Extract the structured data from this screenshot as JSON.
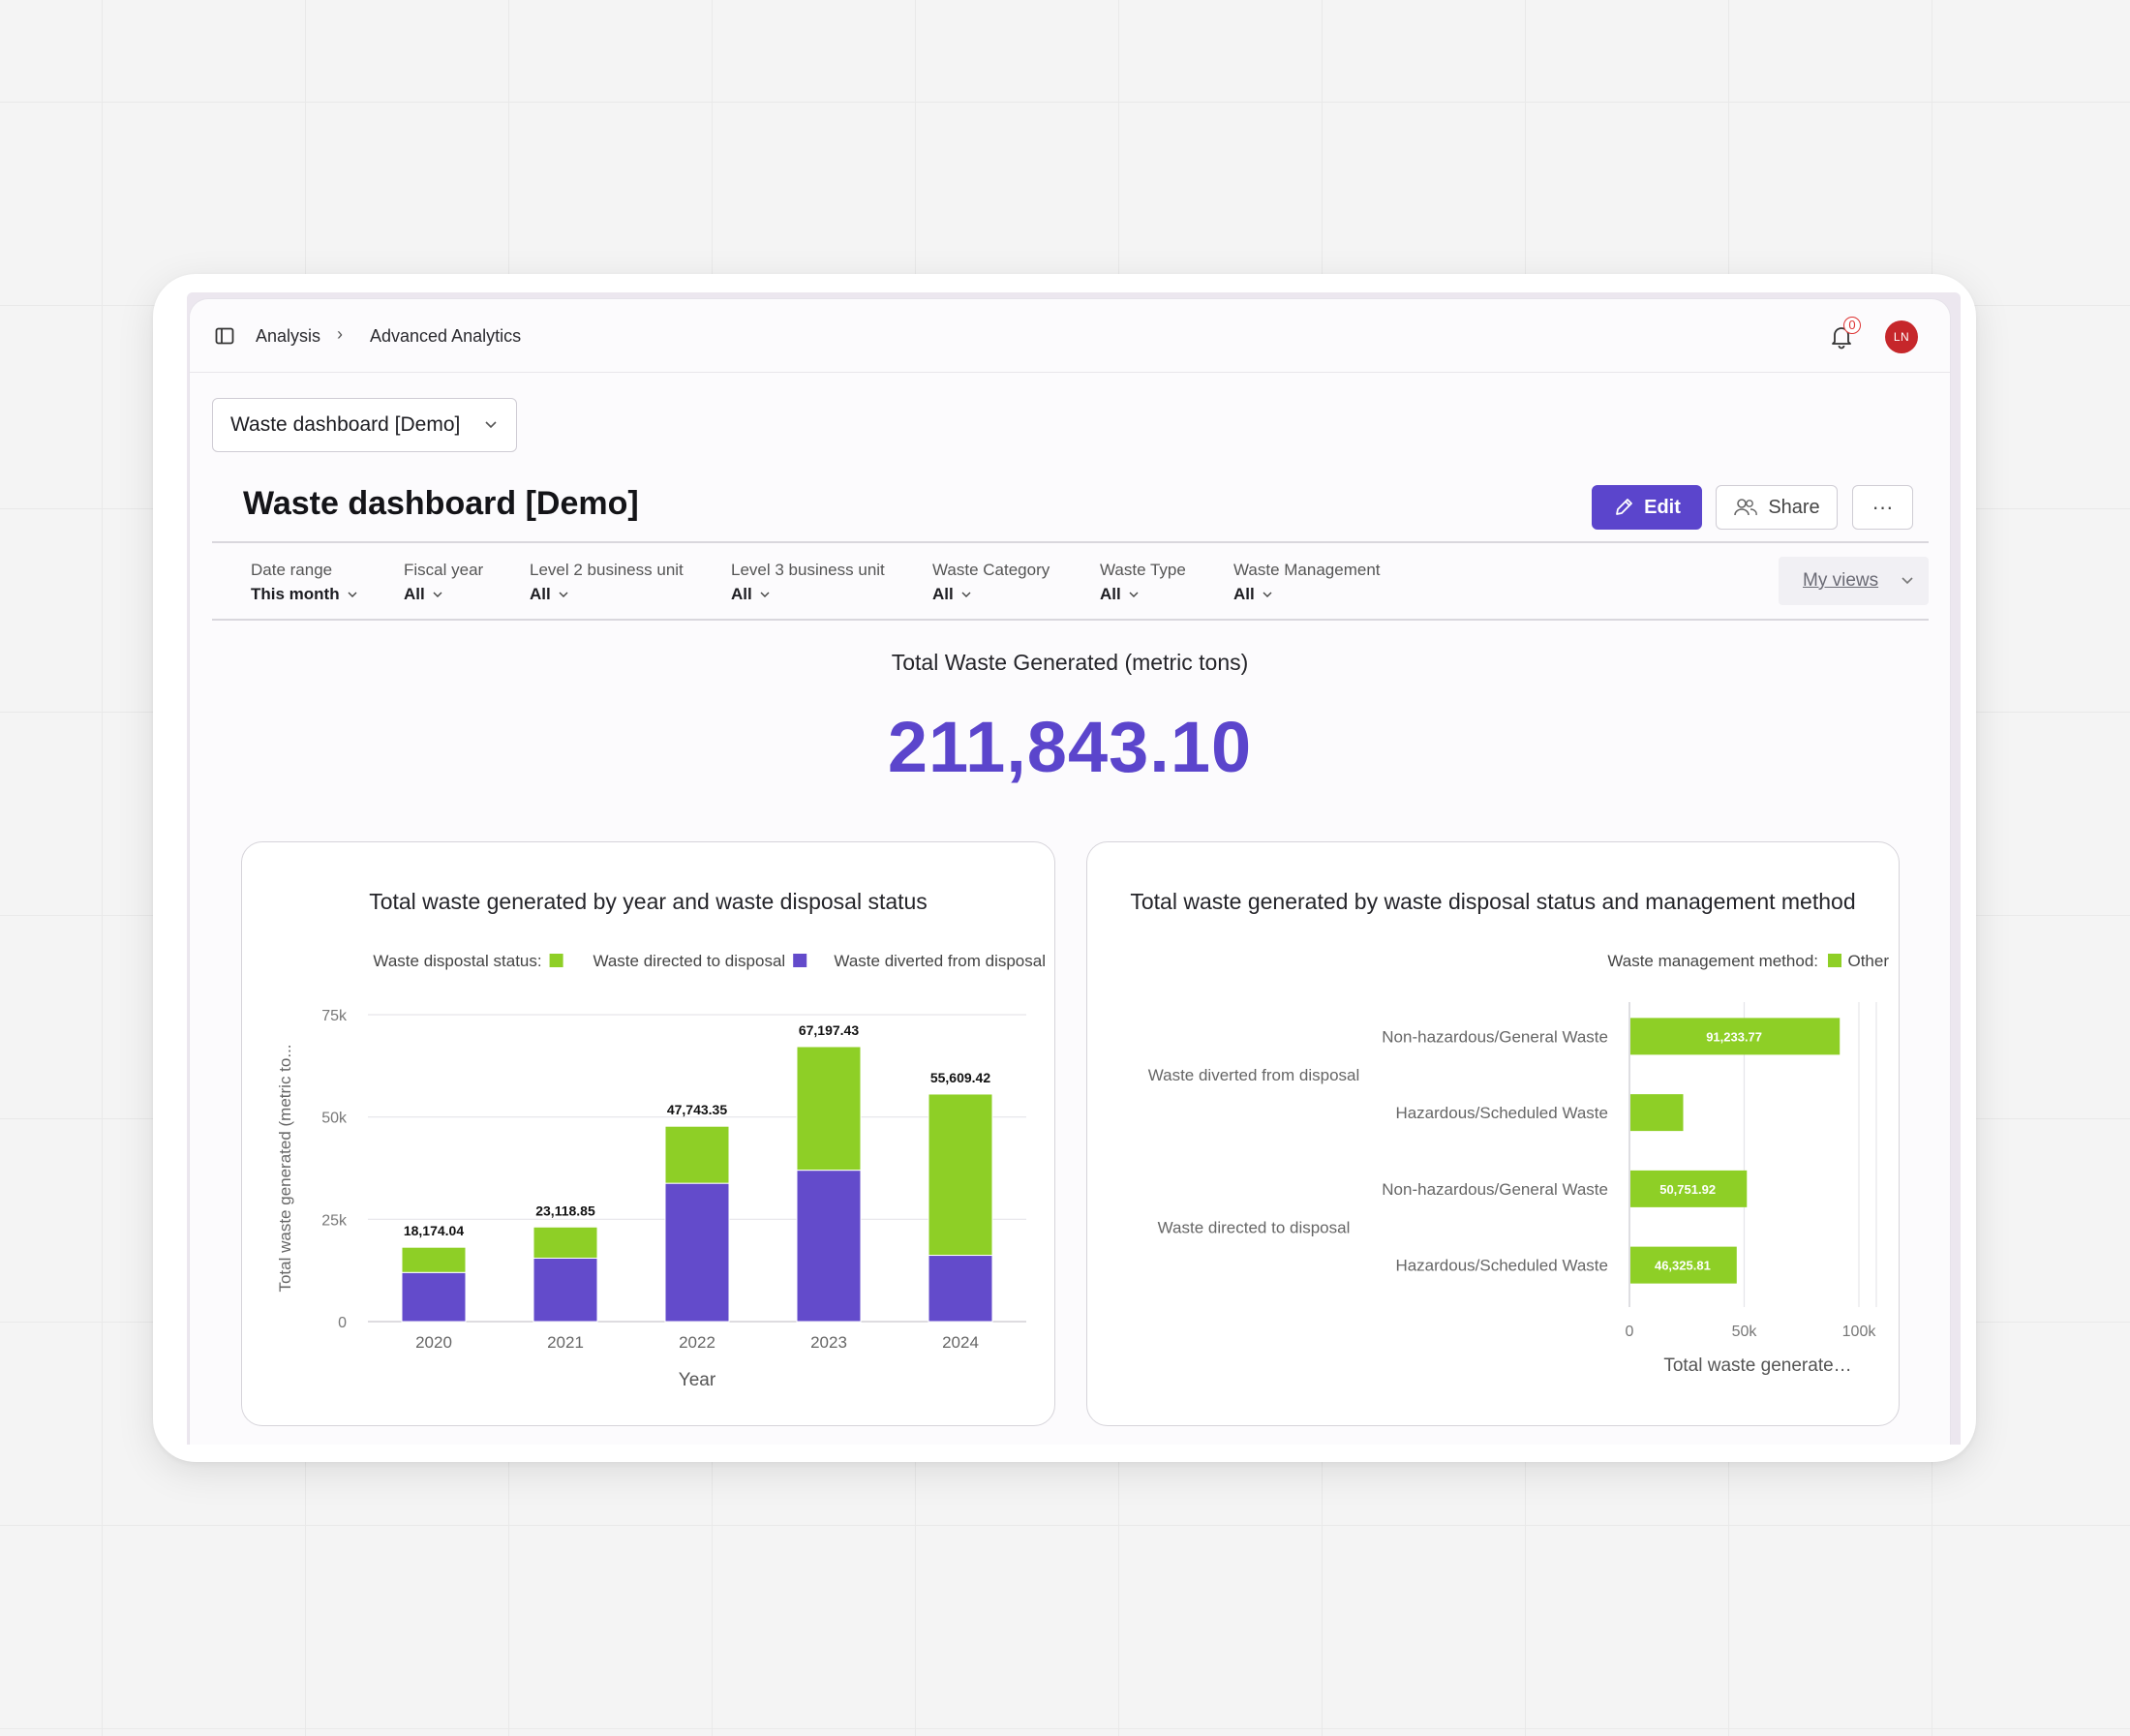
{
  "breadcrumb": {
    "items": [
      "Analysis",
      "Advanced Analytics"
    ]
  },
  "notifications": {
    "count": "0"
  },
  "user": {
    "initials": "LN"
  },
  "dashboard_selector": {
    "value": "Waste dashboard [Demo]"
  },
  "page": {
    "title": "Waste dashboard [Demo]"
  },
  "actions": {
    "edit": "Edit",
    "share": "Share",
    "more": "···"
  },
  "filters": [
    {
      "label": "Date range",
      "value": "This month"
    },
    {
      "label": "Fiscal year",
      "value": "All"
    },
    {
      "label": "Level 2 business unit",
      "value": "All"
    },
    {
      "label": "Level 3 business unit",
      "value": "All"
    },
    {
      "label": "Waste Category",
      "value": "All"
    },
    {
      "label": "Waste Type",
      "value": "All"
    },
    {
      "label": "Waste Management",
      "value": "All"
    }
  ],
  "my_views": "My views",
  "kpi": {
    "title": "Total Waste Generated (metric tons)",
    "value": "211,843.10"
  },
  "colors": {
    "accent": "#5b45cc",
    "green": "#8ecf26",
    "purple": "#634bcb"
  },
  "chart_data": [
    {
      "type": "bar",
      "stacked": true,
      "title": "Total waste generated by year and waste disposal status",
      "legend_title": "Waste dispostal status:",
      "legend_position": "top-right",
      "xlabel": "Year",
      "ylabel": "Total waste generated (metric to...",
      "categories": [
        "2020",
        "2021",
        "2022",
        "2023",
        "2024"
      ],
      "yticks": [
        "0",
        "25k",
        "50k",
        "75k"
      ],
      "ylim": [
        0,
        75000
      ],
      "series": [
        {
          "name": "Waste diverted from disposal",
          "color": "#634bcb",
          "values": [
            12000,
            15500,
            33800,
            37000,
            16200
          ]
        },
        {
          "name": "Waste directed to disposal",
          "color": "#8ecf26",
          "values": [
            6174.04,
            7618.85,
            13943.35,
            30197.43,
            39409.42
          ]
        }
      ],
      "totals": [
        "18,174.04",
        "23,118.85",
        "47,743.35",
        "67,197.43",
        "55,609.42"
      ],
      "grid": true
    },
    {
      "type": "bar",
      "orientation": "horizontal",
      "title": "Total waste generated by waste disposal status and management method",
      "legend_title": "Waste management method:",
      "legend_position": "top-right",
      "xlabel": "Total waste generate…",
      "xticks": [
        "0",
        "50k",
        "100k"
      ],
      "xlim": [
        0,
        100000
      ],
      "groups": [
        {
          "label": "Waste diverted from disposal",
          "items": [
            {
              "label": "Non-hazardous/General Waste",
              "value": 91233.77,
              "display": "91,233.77"
            },
            {
              "label": "Hazardous/Scheduled Waste",
              "value": 23000,
              "display": ""
            }
          ]
        },
        {
          "label": "Waste directed to disposal",
          "items": [
            {
              "label": "Non-hazardous/General Waste",
              "value": 50751.92,
              "display": "50,751.92"
            },
            {
              "label": "Hazardous/Scheduled Waste",
              "value": 46325.81,
              "display": "46,325.81"
            }
          ]
        }
      ],
      "series": [
        {
          "name": "Other",
          "color": "#8ecf26"
        }
      ],
      "grid": true
    }
  ]
}
